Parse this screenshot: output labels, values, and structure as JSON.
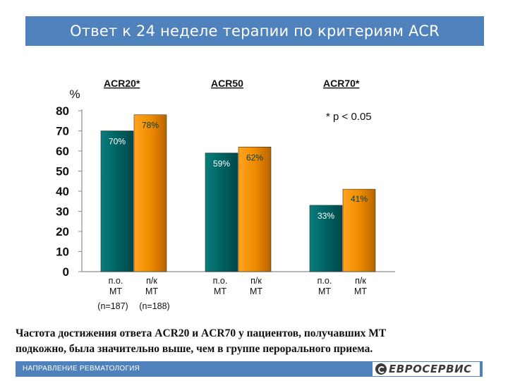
{
  "title": "Ответ к 24 неделе терапии по критериям ACR",
  "caption_line1": "Частота достижения ответа ACR20 и ACR70 у пациентов, получавших МТ",
  "caption_line2": "подкожно, была значительно выше, чем в группе перорального приема.",
  "footer": {
    "label": "НАПРАВЛЕНИЕ РЕВМАТОЛОГИЯ",
    "logo_text": "ЕВРОСЕРВИС"
  },
  "chart_data": {
    "type": "bar",
    "ylabel": "%",
    "ylim": [
      0,
      80
    ],
    "yticks": [
      "0",
      "10",
      "20",
      "30",
      "40",
      "50",
      "60",
      "70",
      "80"
    ],
    "note": "* p < 0.05",
    "groups": [
      {
        "name": "ACR20*",
        "bars": [
          {
            "label_line1": "п.о.",
            "label_line2": "МТ",
            "value": 70,
            "value_label": "70%",
            "n_label": "(n=187)",
            "color": "#006b6b"
          },
          {
            "label_line1": "п/к",
            "label_line2": "МТ",
            "value": 78,
            "value_label": "78%",
            "n_label": "(n=188)",
            "color": "#f08c00"
          }
        ]
      },
      {
        "name": "ACR50",
        "bars": [
          {
            "label_line1": "п.о.",
            "label_line2": "МТ",
            "value": 59,
            "value_label": "59%",
            "n_label": "",
            "color": "#006b6b"
          },
          {
            "label_line1": "п/к",
            "label_line2": "МТ",
            "value": 62,
            "value_label": "62%",
            "n_label": "",
            "color": "#f08c00"
          }
        ]
      },
      {
        "name": "ACR70*",
        "bars": [
          {
            "label_line1": "п.о.",
            "label_line2": "МТ",
            "value": 33,
            "value_label": "33%",
            "n_label": "",
            "color": "#006b6b"
          },
          {
            "label_line1": "п/к",
            "label_line2": "МТ",
            "value": 41,
            "value_label": "41%",
            "n_label": "",
            "color": "#f08c00"
          }
        ]
      }
    ]
  }
}
